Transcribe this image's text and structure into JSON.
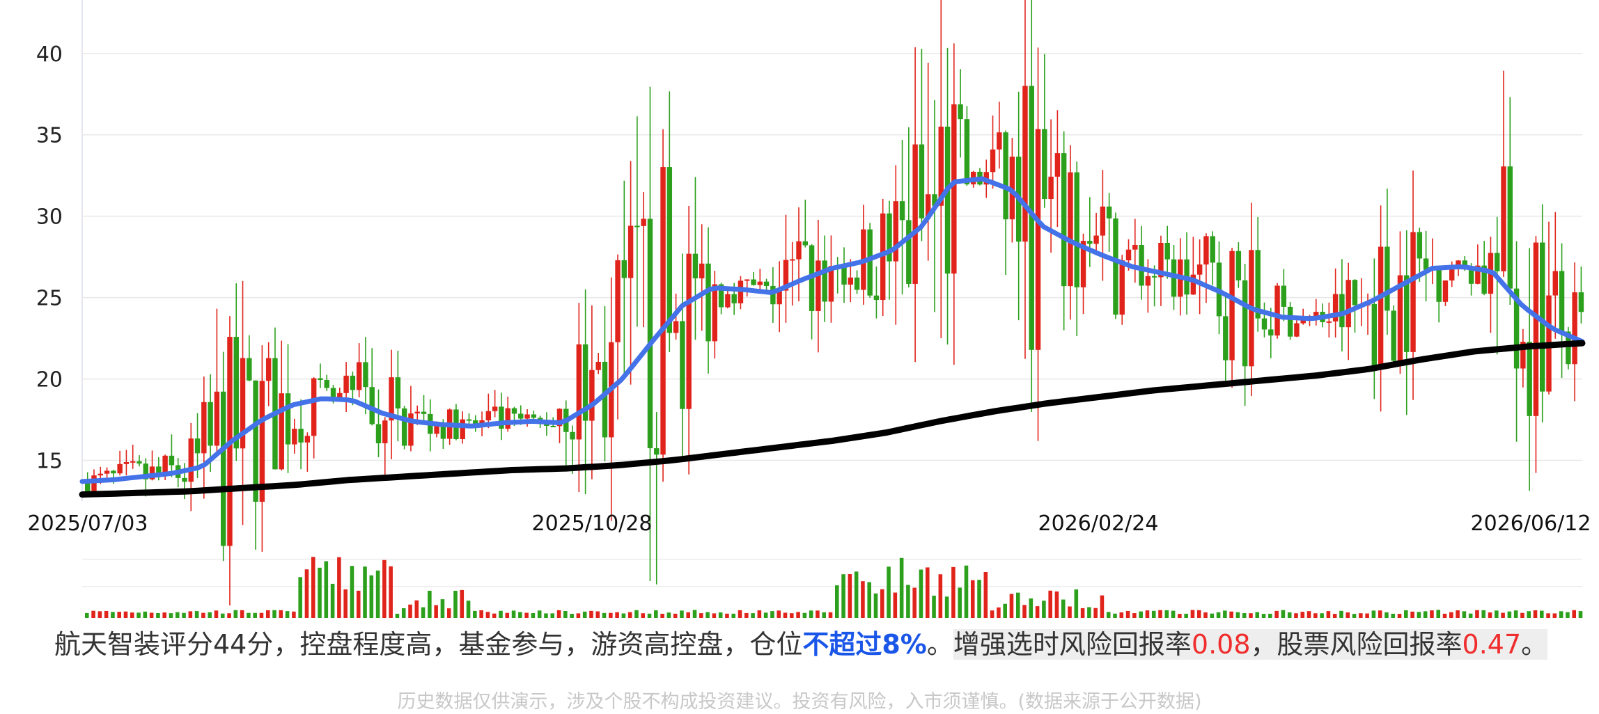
{
  "chart_data": [
    {
      "type": "candlestick",
      "title": "",
      "xlabel": "",
      "ylabel": "",
      "ylim": [
        12.5,
        42
      ],
      "y_ticks": [
        "15",
        "20",
        "25",
        "30",
        "35",
        "40"
      ],
      "x_tick_labels": [
        "2025/07/03",
        "2025/10/28",
        "2026/02/24",
        "2026/06/12"
      ],
      "grid": true,
      "legend": "none",
      "up_color": "#e0241b",
      "down_color": "#2ca01c",
      "series": [
        {
          "type": "line",
          "color": "#4472e8",
          "values": [
            13.7,
            13.8,
            14.0,
            14.2,
            14.6,
            16.2,
            17.5,
            18.4,
            18.8,
            18.7,
            17.9,
            17.4,
            17.2,
            17.1,
            17.3,
            17.4,
            17.3,
            18.4,
            20.0,
            22.3,
            24.5,
            25.6,
            25.5,
            25.3,
            26.1,
            26.8,
            27.2,
            27.9,
            29.4,
            32.1,
            32.3,
            31.6,
            29.4,
            28.4,
            27.6,
            26.9,
            26.5,
            26.1,
            25.3,
            24.3,
            23.8,
            23.7,
            24.0,
            24.8,
            25.8,
            26.8,
            26.9,
            26.6,
            24.5,
            23.1,
            22.3
          ]
        },
        {
          "type": "line",
          "color": "#000000",
          "values": [
            12.9,
            13.0,
            13.1,
            13.3,
            13.5,
            13.8,
            14.0,
            14.2,
            14.4,
            14.5,
            14.7,
            15.0,
            15.4,
            15.8,
            16.2,
            16.7,
            17.4,
            18.0,
            18.5,
            18.9,
            19.3,
            19.6,
            19.9,
            20.2,
            20.6,
            21.2,
            21.7,
            22.0,
            22.2
          ]
        }
      ],
      "volume": {
        "ylim": [
          0,
          100
        ]
      }
    }
  ],
  "summary": {
    "p1": "航天智装评分44分，控盘程度高，基金参与，游资高控盘，仓位",
    "p2": "不超过8%",
    "p3": "。",
    "p4": "增强选时风险回报率",
    "p5": "0.08",
    "p6": "，股票风险回报率",
    "p7": "0.47",
    "p8": "。"
  },
  "disclaimer": "历史数据仅供演示，涉及个股不构成投资建议。投资有风险，入市须谨慎。(数据来源于公开数据)"
}
